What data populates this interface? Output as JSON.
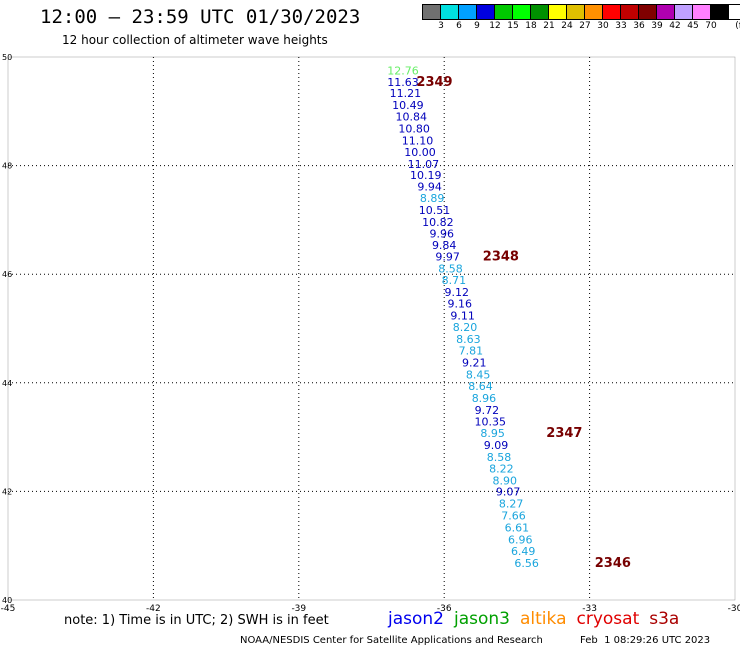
{
  "header": {
    "title": "12:00 — 23:59 UTC 01/30/2023",
    "subtitle": "12 hour collection of altimeter wave heights"
  },
  "legend": {
    "unit": "(ft)",
    "colors": [
      "#707070",
      "#00e0e0",
      "#00a0ff",
      "#0000e0",
      "#00c800",
      "#00ff00",
      "#009000",
      "#ffff00",
      "#e0c000",
      "#ff9000",
      "#ff0000",
      "#c00000",
      "#800000",
      "#b000b0",
      "#c0a0ff",
      "#ff80ff",
      "#000000"
    ],
    "labels": [
      "3",
      "6",
      "9",
      "12",
      "15",
      "18",
      "21",
      "24",
      "27",
      "30",
      "33",
      "36",
      "39",
      "42",
      "45",
      "70"
    ]
  },
  "map": {
    "lon_ticks": [
      "-45",
      "-42",
      "-39",
      "-36",
      "-33",
      "-30"
    ],
    "lat_ticks": [
      "50",
      "48",
      "46",
      "44",
      "42",
      "40"
    ],
    "lon_range": [
      -45,
      -30
    ],
    "lat_range": [
      40,
      50
    ],
    "grid": "dotted"
  },
  "chart_data": {
    "type": "scatter",
    "points": [
      {
        "lon": -36.85,
        "lat": 49.68,
        "label": "12.76",
        "color": "#66ee66"
      },
      {
        "lon": -36.85,
        "lat": 49.47,
        "label": "11.63",
        "color": "#0000bb"
      },
      {
        "lon": -36.8,
        "lat": 49.26,
        "label": "11.21",
        "color": "#0000bb"
      },
      {
        "lon": -36.75,
        "lat": 49.04,
        "label": "10.49",
        "color": "#0000bb"
      },
      {
        "lon": -36.68,
        "lat": 48.83,
        "label": "10.84",
        "color": "#0000bb"
      },
      {
        "lon": -36.62,
        "lat": 48.61,
        "label": "10.80",
        "color": "#0000bb"
      },
      {
        "lon": -36.55,
        "lat": 48.39,
        "label": "11.10",
        "color": "#0000bb"
      },
      {
        "lon": -36.5,
        "lat": 48.18,
        "label": "10.00",
        "color": "#0000bb"
      },
      {
        "lon": -36.43,
        "lat": 47.96,
        "label": "11.07",
        "color": "#0000bb"
      },
      {
        "lon": -36.38,
        "lat": 47.75,
        "label": "10.19",
        "color": "#0000bb"
      },
      {
        "lon": -36.3,
        "lat": 47.54,
        "label": "9.94",
        "color": "#0000bb"
      },
      {
        "lon": -36.25,
        "lat": 47.33,
        "label": "8.89",
        "color": "#1aa5dd"
      },
      {
        "lon": -36.2,
        "lat": 47.11,
        "label": "10.51",
        "color": "#0000bb"
      },
      {
        "lon": -36.13,
        "lat": 46.89,
        "label": "10.82",
        "color": "#0000bb"
      },
      {
        "lon": -36.05,
        "lat": 46.68,
        "label": "9.96",
        "color": "#0000bb"
      },
      {
        "lon": -36.0,
        "lat": 46.46,
        "label": "9.84",
        "color": "#0000bb"
      },
      {
        "lon": -35.93,
        "lat": 46.25,
        "label": "9.97",
        "color": "#0000bb"
      },
      {
        "lon": -35.87,
        "lat": 46.03,
        "label": "8.58",
        "color": "#1aa5dd"
      },
      {
        "lon": -35.8,
        "lat": 45.82,
        "label": "8.71",
        "color": "#1aa5dd"
      },
      {
        "lon": -35.74,
        "lat": 45.6,
        "label": "9.12",
        "color": "#0000bb"
      },
      {
        "lon": -35.68,
        "lat": 45.39,
        "label": "9.16",
        "color": "#0000bb"
      },
      {
        "lon": -35.62,
        "lat": 45.17,
        "label": "9.11",
        "color": "#0000bb"
      },
      {
        "lon": -35.57,
        "lat": 44.95,
        "label": "8.20",
        "color": "#1aa5dd"
      },
      {
        "lon": -35.5,
        "lat": 44.73,
        "label": "8.63",
        "color": "#1aa5dd"
      },
      {
        "lon": -35.45,
        "lat": 44.52,
        "label": "7.81",
        "color": "#1aa5dd"
      },
      {
        "lon": -35.38,
        "lat": 44.3,
        "label": "9.21",
        "color": "#0000bb"
      },
      {
        "lon": -35.3,
        "lat": 44.08,
        "label": "8.45",
        "color": "#1aa5dd"
      },
      {
        "lon": -35.25,
        "lat": 43.87,
        "label": "8.64",
        "color": "#1aa5dd"
      },
      {
        "lon": -35.18,
        "lat": 43.65,
        "label": "8.96",
        "color": "#1aa5dd"
      },
      {
        "lon": -35.12,
        "lat": 43.43,
        "label": "9.72",
        "color": "#0000bb"
      },
      {
        "lon": -35.05,
        "lat": 43.21,
        "label": "10.35",
        "color": "#0000bb"
      },
      {
        "lon": -35.0,
        "lat": 43.0,
        "label": "8.95",
        "color": "#1aa5dd"
      },
      {
        "lon": -34.93,
        "lat": 42.78,
        "label": "9.09",
        "color": "#0000bb"
      },
      {
        "lon": -34.87,
        "lat": 42.56,
        "label": "8.58",
        "color": "#1aa5dd"
      },
      {
        "lon": -34.82,
        "lat": 42.35,
        "label": "8.22",
        "color": "#1aa5dd"
      },
      {
        "lon": -34.75,
        "lat": 42.13,
        "label": "8.90",
        "color": "#1aa5dd"
      },
      {
        "lon": -34.68,
        "lat": 41.92,
        "label": "9.07",
        "color": "#0000bb"
      },
      {
        "lon": -34.62,
        "lat": 41.7,
        "label": "8.27",
        "color": "#1aa5dd"
      },
      {
        "lon": -34.57,
        "lat": 41.48,
        "label": "7.66",
        "color": "#1aa5dd"
      },
      {
        "lon": -34.5,
        "lat": 41.26,
        "label": "6.61",
        "color": "#1aa5dd"
      },
      {
        "lon": -34.43,
        "lat": 41.04,
        "label": "6.96",
        "color": "#1aa5dd"
      },
      {
        "lon": -34.37,
        "lat": 40.83,
        "label": "6.49",
        "color": "#1aa5dd"
      },
      {
        "lon": -34.3,
        "lat": 40.61,
        "label": "6.56",
        "color": "#1aa5dd"
      }
    ],
    "time_markers": [
      {
        "lon": -36.2,
        "lat": 49.47,
        "label": "2349"
      },
      {
        "lon": -34.83,
        "lat": 46.25,
        "label": "2348"
      },
      {
        "lon": -33.52,
        "lat": 43.0,
        "label": "2347"
      },
      {
        "lon": -32.52,
        "lat": 40.61,
        "label": "2346"
      }
    ],
    "time_marker_color": "#770000"
  },
  "note": "note:  1) Time is in UTC;  2) SWH is in feet",
  "satellites": [
    {
      "name": "jason2",
      "color": "#0000ee"
    },
    {
      "name": "jason3",
      "color": "#00a000"
    },
    {
      "name": "altika",
      "color": "#ff8c00"
    },
    {
      "name": "cryosat",
      "color": "#e00000"
    },
    {
      "name": "s3a",
      "color": "#aa0000"
    }
  ],
  "footer": {
    "credit": "NOAA/NESDIS Center for Satellite Applications and Research",
    "timestamp": "Feb  1 08:29:26 UTC 2023"
  }
}
